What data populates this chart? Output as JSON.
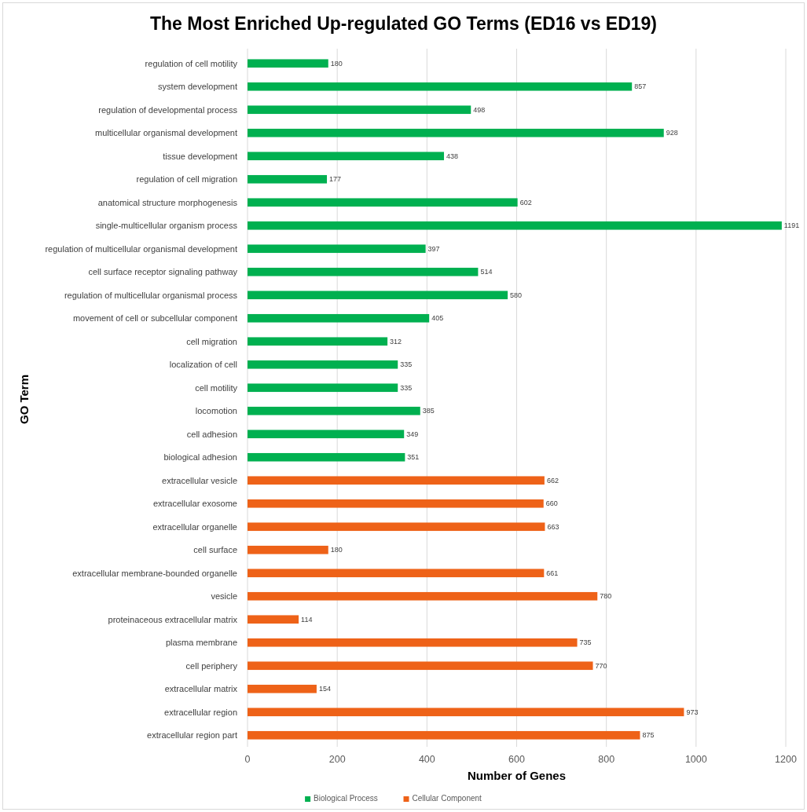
{
  "chart_data": {
    "type": "bar",
    "orientation": "horizontal",
    "title": "The Most Enriched Up-regulated GO Terms (ED16 vs ED19)",
    "xlabel": "Number of Genes",
    "ylabel": "GO Term",
    "categories": [
      "regulation of cell motility",
      "system development",
      "regulation of developmental process",
      "multicellular organismal development",
      "tissue development",
      "regulation of cell migration",
      "anatomical structure morphogenesis",
      "single-multicellular organism process",
      "regulation of multicellular organismal development",
      "cell surface receptor signaling pathway",
      "regulation of multicellular organismal process",
      "movement of cell or subcellular component",
      "cell migration",
      "localization of cell",
      "cell motility",
      "locomotion",
      "cell adhesion",
      "biological adhesion",
      "extracellular vesicle",
      "extracellular exosome",
      "extracellular organelle",
      "cell surface",
      "extracellular membrane-bounded organelle",
      "vesicle",
      "proteinaceous extracellular matrix",
      "plasma membrane",
      "cell periphery",
      "extracellular matrix",
      "extracellular region",
      "extracellular region part"
    ],
    "series": [
      {
        "name": "Biological Process",
        "color": "#00b050",
        "values": [
          180,
          857,
          498,
          928,
          438,
          177,
          602,
          1191,
          397,
          514,
          580,
          405,
          312,
          335,
          335,
          385,
          349,
          351,
          null,
          null,
          null,
          null,
          null,
          null,
          null,
          null,
          null,
          null,
          null,
          null
        ]
      },
      {
        "name": "Cellular Component",
        "color": "#ee6218",
        "values": [
          null,
          null,
          null,
          null,
          null,
          null,
          null,
          null,
          null,
          null,
          null,
          null,
          null,
          null,
          null,
          null,
          null,
          null,
          662,
          660,
          663,
          180,
          661,
          780,
          114,
          735,
          770,
          154,
          973,
          875
        ]
      }
    ],
    "xlim": [
      0,
      1200
    ],
    "xticks": [
      0,
      200,
      400,
      600,
      800,
      1000,
      1200
    ],
    "grid": "x",
    "legend": "bottom",
    "data_labels": true
  }
}
